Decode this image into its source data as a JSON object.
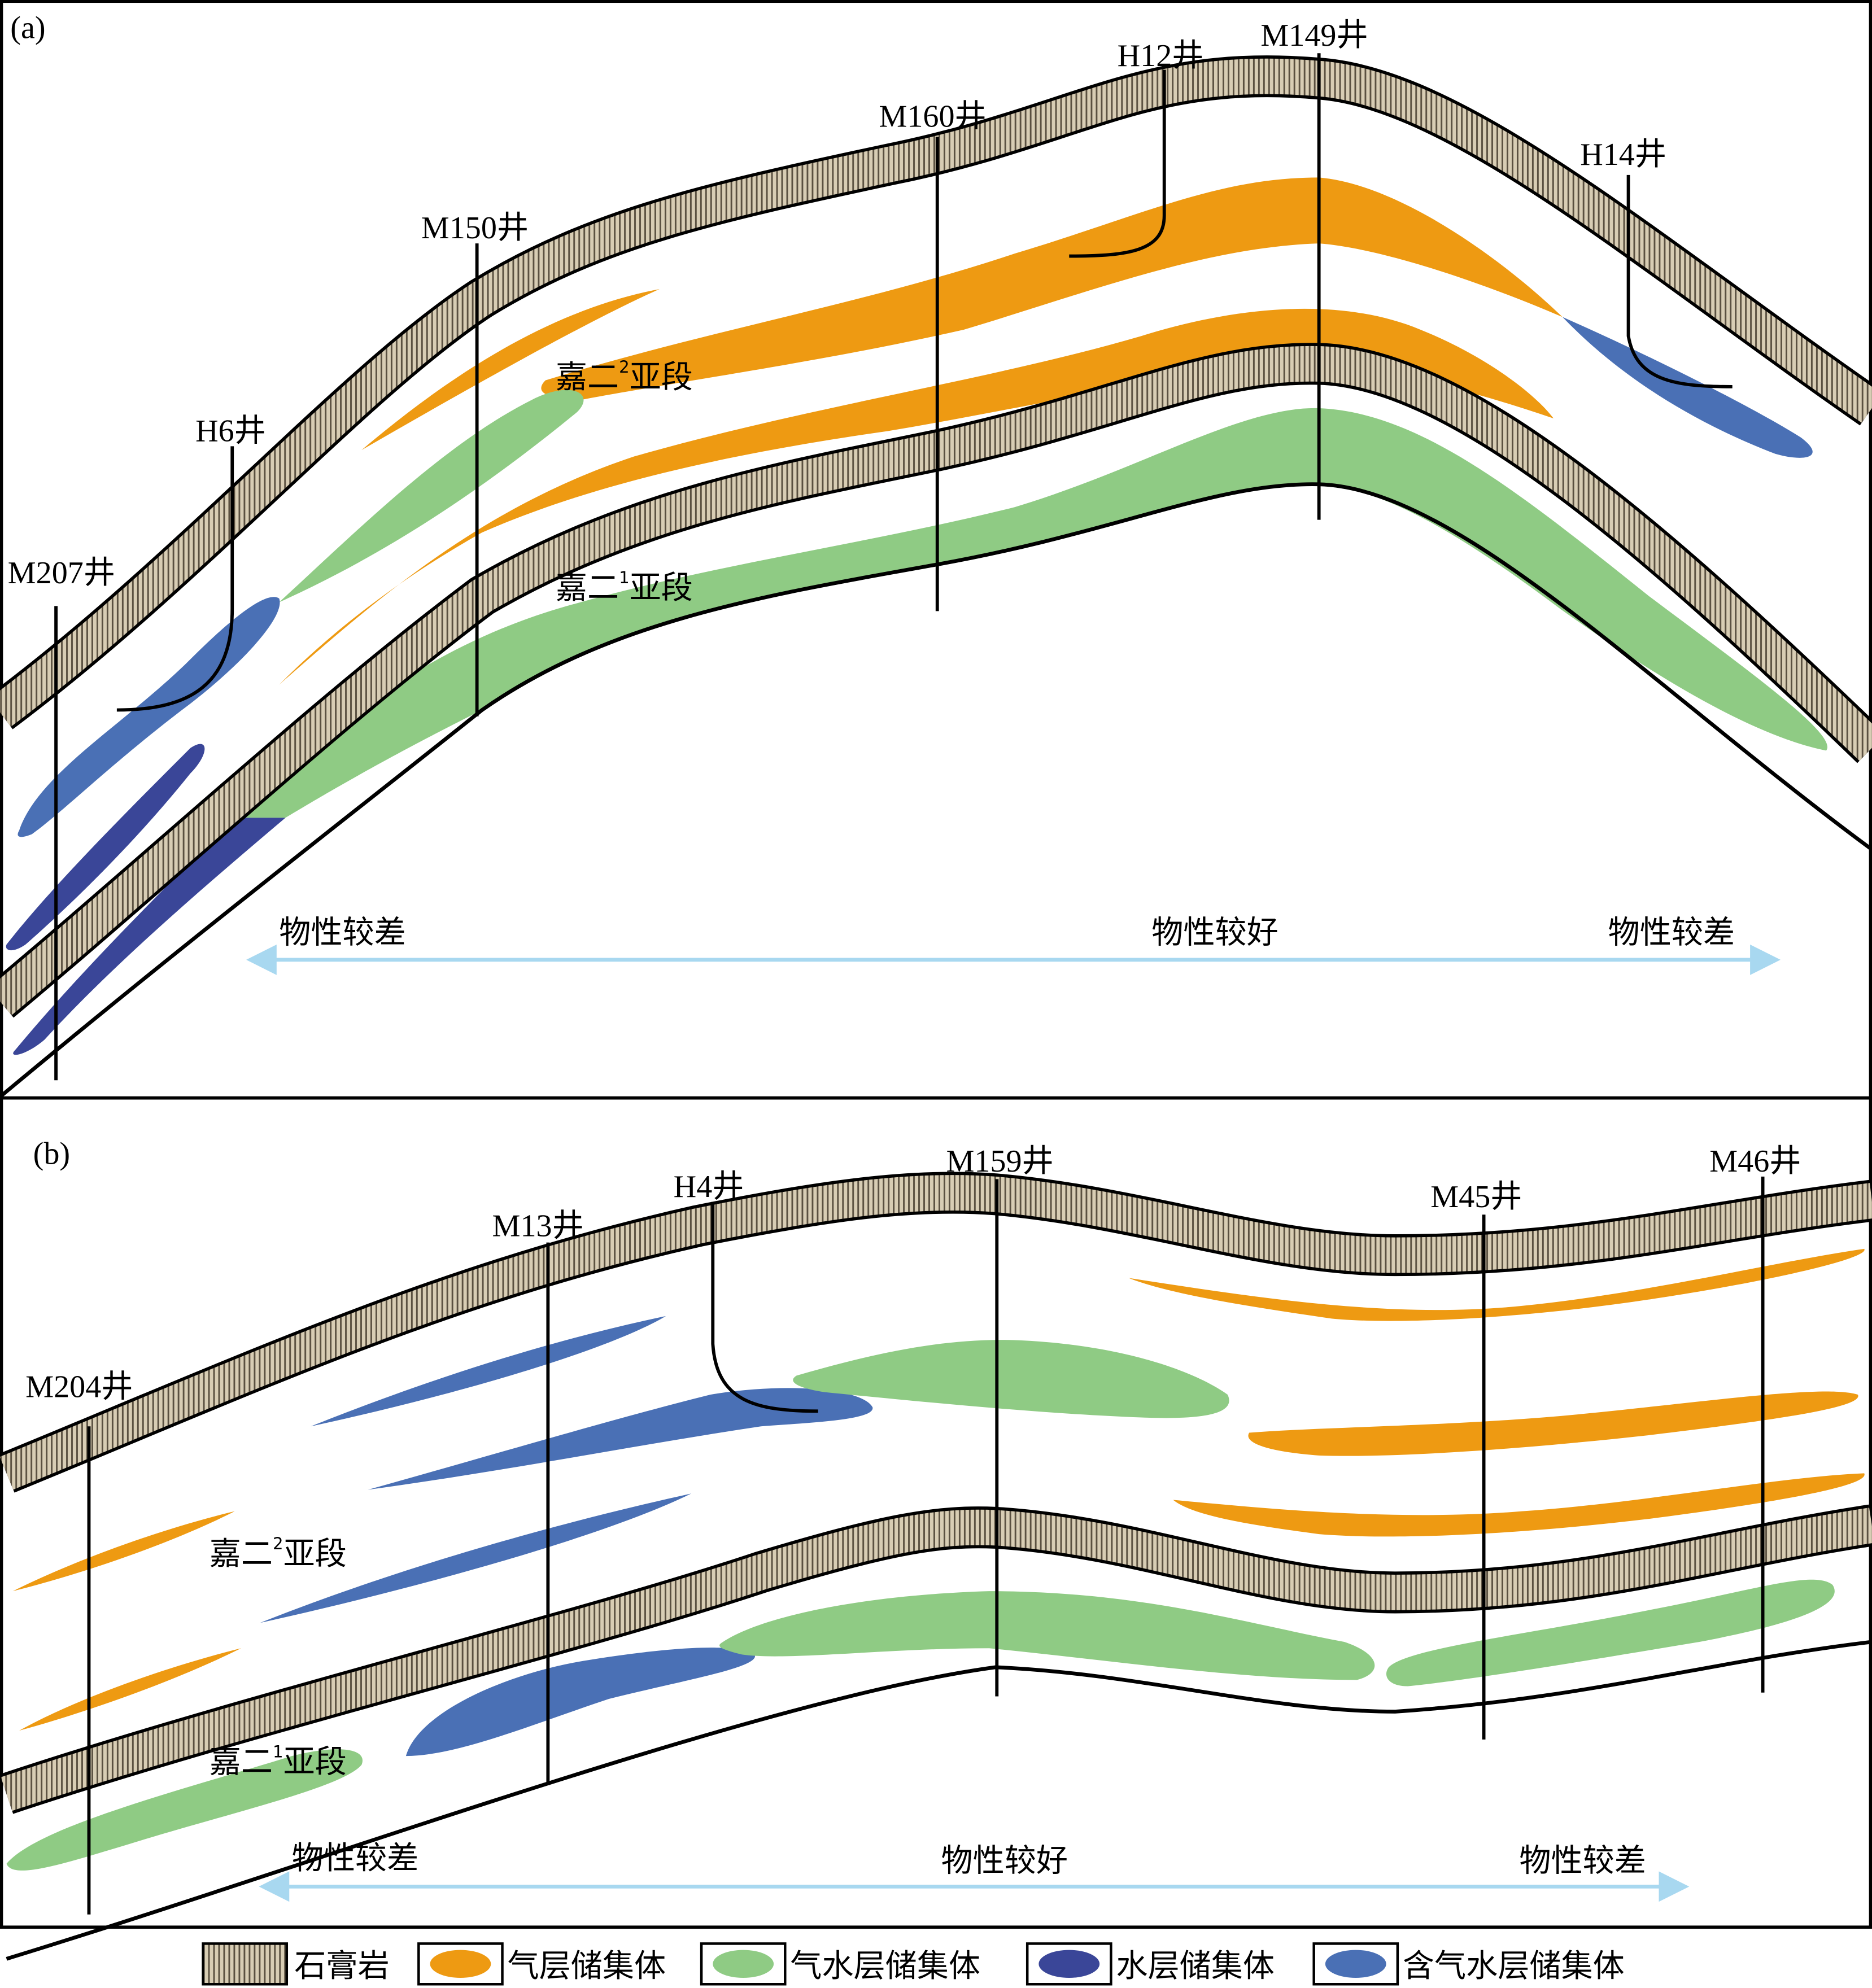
{
  "panel_a": {
    "label": "(a)",
    "wells": [
      "M207井",
      "H6井",
      "M150井",
      "M160井",
      "H12井",
      "M149井",
      "H14井"
    ],
    "zone_upper": {
      "main": "嘉二",
      "sup": "2",
      "tail": "亚段"
    },
    "zone_lower": {
      "main": "嘉二",
      "sup": "1",
      "tail": "亚段"
    },
    "trend": [
      "物性较差",
      "物性较好",
      "物性较差"
    ]
  },
  "panel_b": {
    "label": "(b)",
    "wells": [
      "M204井",
      "M13井",
      "H4井",
      "M159井",
      "M45井",
      "M46井"
    ],
    "zone_upper": {
      "main": "嘉二",
      "sup": "2",
      "tail": "亚段"
    },
    "zone_lower": {
      "main": "嘉二",
      "sup": "1",
      "tail": "亚段"
    },
    "trend": [
      "物性较差",
      "物性较好",
      "物性较差"
    ]
  },
  "legend": [
    {
      "label": "石膏岩",
      "color": "#D8CDB4",
      "icon": "gypsum-hatch"
    },
    {
      "label": "气层储集体",
      "color": "#EE9A12"
    },
    {
      "label": "气水层储集体",
      "color": "#8FCB84"
    },
    {
      "label": "水层储集体",
      "color": "#3A4698"
    },
    {
      "label": "含气水层储集体",
      "color": "#4A70B5"
    }
  ],
  "colors": {
    "arrow": "#A8D8F0",
    "gypsum": "#D8CDB4"
  }
}
